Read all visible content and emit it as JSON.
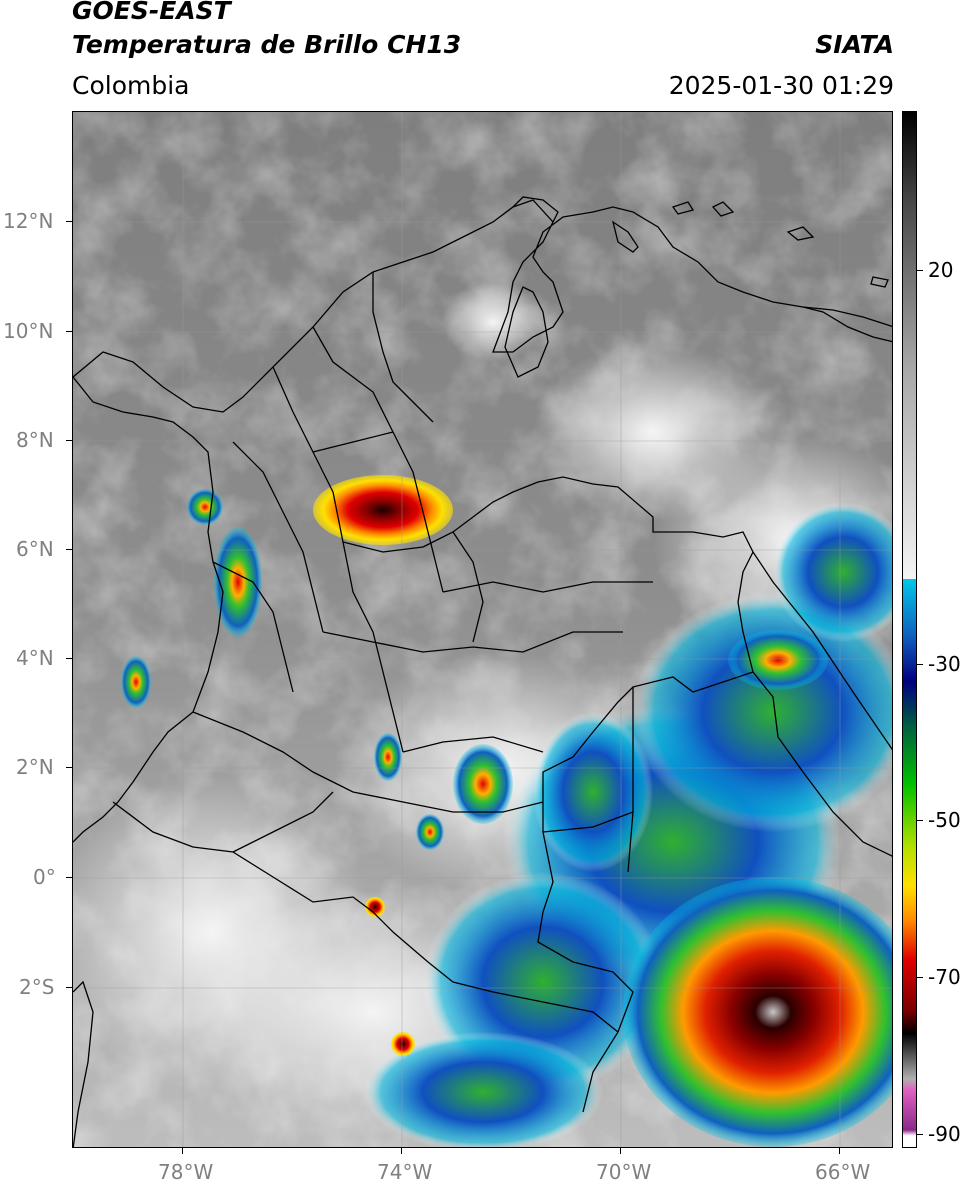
{
  "header": {
    "satellite": "GOES-EAST",
    "product": "Temperatura de Brillo CH13",
    "region": "Colombia",
    "agency": "SIATA",
    "timestamp": "2025-01-30 01:29"
  },
  "map": {
    "lon_labels": [
      "78°W",
      "74°W",
      "70°W",
      "66°W"
    ],
    "lat_labels": [
      "12°N",
      "10°N",
      "8°N",
      "6°N",
      "4°N",
      "2°N",
      "0°",
      "2°S"
    ]
  },
  "colorbar": {
    "labels": [
      "20",
      "-30",
      "-50",
      "-70",
      "-90"
    ],
    "colors": {
      "white": "#ffffff",
      "pink": "#e060c0",
      "purple": "#8a2a8a",
      "black": "#000000",
      "dark_red": "#7a0000",
      "red": "#e00000",
      "orange": "#ff8c00",
      "yellow": "#ffe000",
      "green": "#00c000",
      "dark_green": "#006040",
      "navy": "#000080",
      "blue": "#2060e0",
      "cyan": "#00c8e8",
      "light_gray": "#f0f0f0",
      "gray": "#808080",
      "dark_gray": "#1a1a1a"
    }
  }
}
